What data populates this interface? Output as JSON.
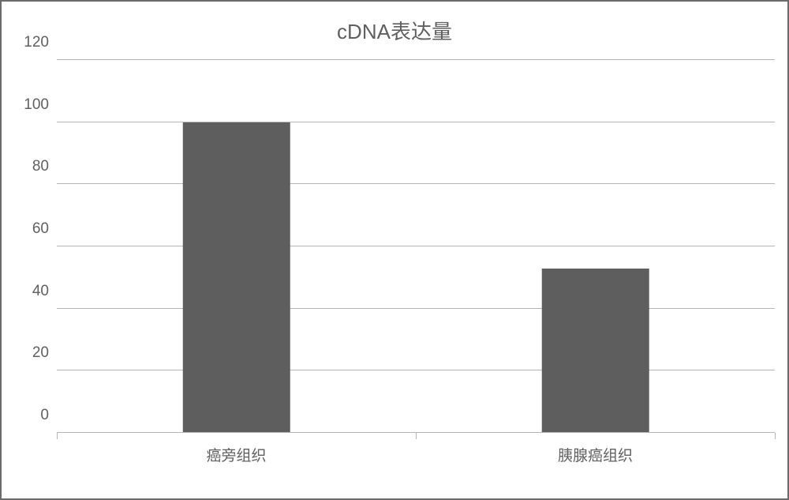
{
  "chart": {
    "type": "bar",
    "title": "cDNA表达量",
    "title_fontsize": 26,
    "title_color": "#606060",
    "background_color": "#ffffff",
    "border_color": "#6b6b6b",
    "categories": [
      "癌旁组织",
      "胰腺癌组织"
    ],
    "values": [
      100,
      53
    ],
    "bar_colors": [
      "#5e5e5e",
      "#5e5e5e"
    ],
    "ylim": [
      0,
      120
    ],
    "ytick_step": 20,
    "yticks": [
      0,
      20,
      40,
      60,
      80,
      100,
      120
    ],
    "gridline_color": "#b5b5b5",
    "axis_line_color": "#b5b5b5",
    "tick_label_fontsize": 19,
    "tick_label_color": "#606060",
    "x_label_fontsize": 19,
    "bar_width_ratio": 0.3,
    "grid_on": true
  }
}
